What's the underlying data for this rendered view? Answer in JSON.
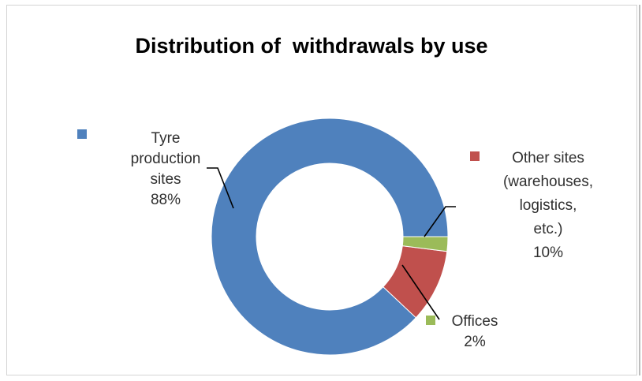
{
  "chart_data": {
    "type": "pie",
    "subtype": "donut",
    "title": "Distribution of  withdrawals by use",
    "slices": [
      {
        "name": "Tyre production sites",
        "label_lines": [
          "Tyre",
          "production",
          "sites"
        ],
        "value": 88,
        "value_label": "88%",
        "color": "#4f81bd"
      },
      {
        "name": "Other sites (warehouses, logistics, etc.)",
        "label_lines": [
          "Other sites",
          "(warehouses,",
          "logistics,",
          "etc.)"
        ],
        "value": 10,
        "value_label": "10%",
        "color": "#c0504d"
      },
      {
        "name": "Offices",
        "label_lines": [
          "Offices"
        ],
        "value": 2,
        "value_label": "2%",
        "color": "#9bbb59"
      }
    ]
  }
}
